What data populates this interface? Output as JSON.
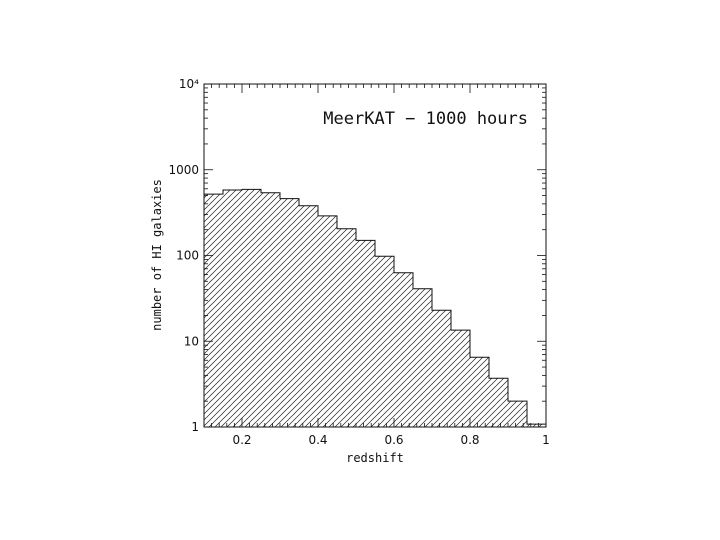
{
  "chart_data": {
    "type": "bar",
    "subtype": "histogram",
    "annotation": "MeerKAT − 1000 hours",
    "xlabel": "redshift",
    "ylabel": "number of HI galaxies",
    "xlim": [
      0.1,
      1.0
    ],
    "ylim": [
      1,
      10000
    ],
    "yscale": "log",
    "grid": false,
    "fill_pattern": "diagonal-hatch",
    "x_ticks": [
      {
        "value": 0.2,
        "label": "0.2"
      },
      {
        "value": 0.4,
        "label": "0.4"
      },
      {
        "value": 0.6,
        "label": "0.6"
      },
      {
        "value": 0.8,
        "label": "0.8"
      },
      {
        "value": 1.0,
        "label": "1"
      }
    ],
    "y_ticks": [
      {
        "value": 1,
        "label": "1"
      },
      {
        "value": 10,
        "label": "10"
      },
      {
        "value": 100,
        "label": "100"
      },
      {
        "value": 1000,
        "label": "1000"
      },
      {
        "value": 10000,
        "label": "10⁴"
      }
    ],
    "bins": [
      {
        "x0": 0.1,
        "x1": 0.15,
        "value": 520
      },
      {
        "x0": 0.15,
        "x1": 0.2,
        "value": 580
      },
      {
        "x0": 0.2,
        "x1": 0.25,
        "value": 590
      },
      {
        "x0": 0.25,
        "x1": 0.3,
        "value": 540
      },
      {
        "x0": 0.3,
        "x1": 0.35,
        "value": 460
      },
      {
        "x0": 0.35,
        "x1": 0.4,
        "value": 380
      },
      {
        "x0": 0.4,
        "x1": 0.45,
        "value": 290
      },
      {
        "x0": 0.45,
        "x1": 0.5,
        "value": 205
      },
      {
        "x0": 0.5,
        "x1": 0.55,
        "value": 150
      },
      {
        "x0": 0.55,
        "x1": 0.6,
        "value": 98
      },
      {
        "x0": 0.6,
        "x1": 0.65,
        "value": 63
      },
      {
        "x0": 0.65,
        "x1": 0.7,
        "value": 41
      },
      {
        "x0": 0.7,
        "x1": 0.75,
        "value": 23
      },
      {
        "x0": 0.75,
        "x1": 0.8,
        "value": 13.5
      },
      {
        "x0": 0.8,
        "x1": 0.85,
        "value": 6.5
      },
      {
        "x0": 0.85,
        "x1": 0.9,
        "value": 3.7
      },
      {
        "x0": 0.9,
        "x1": 0.95,
        "value": 2.0
      },
      {
        "x0": 0.95,
        "x1": 1.0,
        "value": 1.08
      }
    ]
  }
}
